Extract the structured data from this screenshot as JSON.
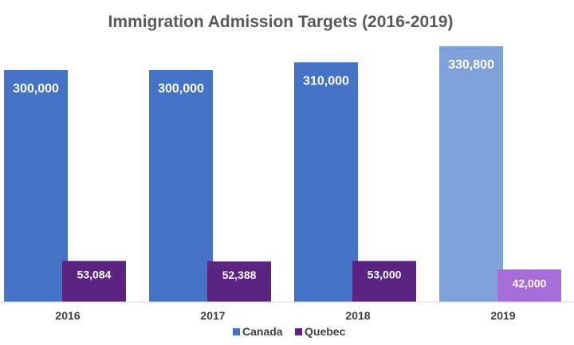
{
  "chart_data": {
    "type": "bar",
    "title": "Immigration Admission Targets (2016-2019)",
    "xlabel": "",
    "ylabel": "",
    "categories": [
      "2016",
      "2017",
      "2018",
      "2019"
    ],
    "series": [
      {
        "name": "Canada",
        "values": [
          300000,
          300000,
          310000,
          330800
        ],
        "labels": [
          "300,000",
          "300,000",
          "310,000",
          "330,800"
        ],
        "color": "#4472C4",
        "highlight_color": "#7FA1DA"
      },
      {
        "name": "Quebec",
        "values": [
          53084,
          52388,
          53000,
          42000
        ],
        "labels": [
          "53,084",
          "52,388",
          "53,000",
          "42,000"
        ],
        "color": "#5B2483",
        "highlight_color": "#A66DD8"
      }
    ],
    "highlight_category_index": 3,
    "ylim": [
      0,
      335000
    ],
    "grid": false,
    "legend": "bottom"
  }
}
